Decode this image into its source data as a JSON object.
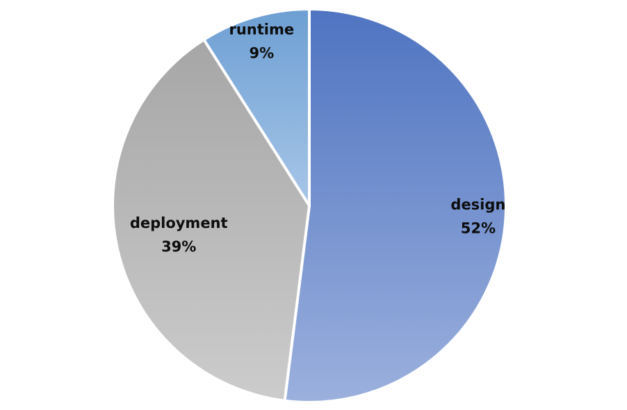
{
  "chart_data": {
    "type": "pie",
    "title": "",
    "legend": "none",
    "slices": [
      {
        "label": "design",
        "value": 52,
        "value_label": "52%",
        "color_start": "#4f74c1",
        "color_end": "#9bb0dd"
      },
      {
        "label": "deployment",
        "value": 39,
        "value_label": "39%",
        "color_start": "#a6a6a6",
        "color_end": "#cccccc"
      },
      {
        "label": "runtime",
        "value": 9,
        "value_label": "9%",
        "color_start": "#6d9fd3",
        "color_end": "#a8c6e8"
      }
    ]
  }
}
